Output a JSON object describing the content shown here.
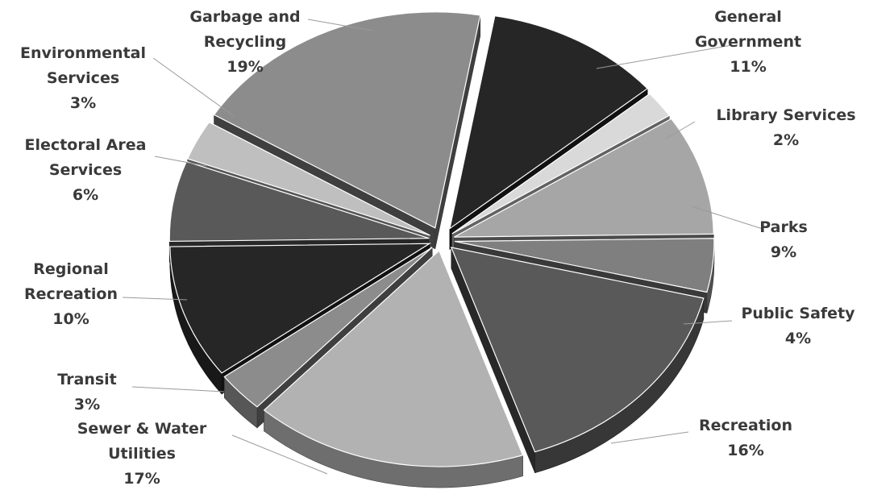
{
  "chart_data": {
    "type": "pie",
    "style": "3d-exploded",
    "title": "",
    "legend": "none",
    "slices": [
      {
        "name": "General Government",
        "label_lines": [
          "General",
          "Government"
        ],
        "percent_label": "11%",
        "value": 11,
        "color": "#262626"
      },
      {
        "name": "Library Services",
        "label_lines": [
          "Library Services"
        ],
        "percent_label": "2%",
        "value": 2,
        "color": "#d9d9d9"
      },
      {
        "name": "Parks",
        "label_lines": [
          "Parks"
        ],
        "percent_label": "9%",
        "value": 9,
        "color": "#a6a6a6"
      },
      {
        "name": "Public Safety",
        "label_lines": [
          "Public Safety"
        ],
        "percent_label": "4%",
        "value": 4,
        "color": "#7f7f7f"
      },
      {
        "name": "Recreation",
        "label_lines": [
          "Recreation"
        ],
        "percent_label": "16%",
        "value": 16,
        "color": "#595959"
      },
      {
        "name": "Sewer & Water Utilities",
        "label_lines": [
          "Sewer & Water",
          "Utilities"
        ],
        "percent_label": "17%",
        "value": 17,
        "color": "#b2b2b2"
      },
      {
        "name": "Transit",
        "label_lines": [
          "Transit"
        ],
        "percent_label": "3%",
        "value": 3,
        "color": "#8c8c8c"
      },
      {
        "name": "Regional Recreation",
        "label_lines": [
          "Regional",
          "Recreation"
        ],
        "percent_label": "10%",
        "value": 10,
        "color": "#262626"
      },
      {
        "name": "Electoral Area Services",
        "label_lines": [
          "Electoral Area",
          "Services"
        ],
        "percent_label": "6%",
        "value": 6,
        "color": "#595959"
      },
      {
        "name": "Environmental Services",
        "label_lines": [
          "Environmental",
          "Services"
        ],
        "percent_label": "3%",
        "value": 3,
        "color": "#bfbfbf"
      },
      {
        "name": "Garbage and Recycling",
        "label_lines": [
          "Garbage and",
          "Recycling"
        ],
        "percent_label": "19%",
        "value": 19,
        "color": "#8c8c8c"
      }
    ]
  }
}
